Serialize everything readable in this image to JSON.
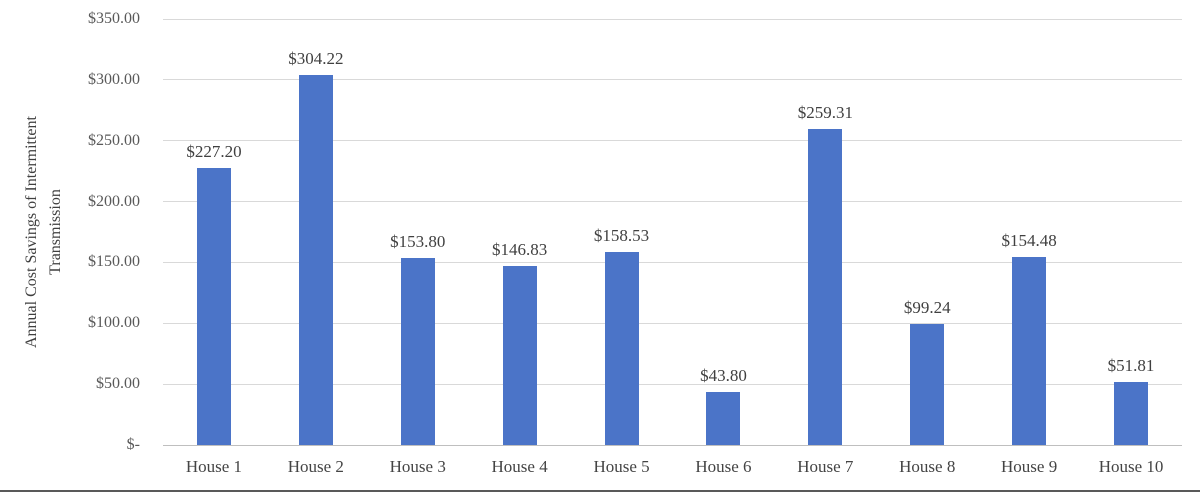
{
  "figure": {
    "bottom_border_color": "#595959",
    "background_color": "#ffffff"
  },
  "chart_data": {
    "type": "bar",
    "title": "",
    "ylabel_line1": "Annual Cost Savings of Intermittent",
    "ylabel_line2": "Transmission",
    "xlabel": "",
    "categories": [
      "House 1",
      "House 2",
      "House 3",
      "House 4",
      "House 5",
      "House 6",
      "House 7",
      "House 8",
      "House 9",
      "House 10"
    ],
    "values": [
      227.2,
      304.22,
      153.8,
      146.83,
      158.53,
      43.8,
      259.31,
      99.24,
      154.48,
      51.81
    ],
    "data_labels": [
      "$227.20",
      "$304.22",
      "$153.80",
      "$146.83",
      "$158.53",
      "$43.80",
      "$259.31",
      "$99.24",
      "$154.48",
      "$51.81"
    ],
    "y_ticks": [
      {
        "value": 350,
        "label": "$350.00"
      },
      {
        "value": 300,
        "label": "$300.00"
      },
      {
        "value": 250,
        "label": "$250.00"
      },
      {
        "value": 200,
        "label": "$200.00"
      },
      {
        "value": 150,
        "label": "$150.00"
      },
      {
        "value": 100,
        "label": "$100.00"
      },
      {
        "value": 50,
        "label": "$50.00"
      },
      {
        "value": 0,
        "label": "$-"
      }
    ],
    "ylim": [
      0,
      350
    ],
    "grid": true,
    "legend": "none",
    "bar_color": "#4b74c8",
    "gridline_color": "#d9d9d9",
    "axis_line_color": "#bfbfbf",
    "tick_text_color": "#595959",
    "data_label_color": "#404040",
    "category_label_color": "#444444"
  }
}
